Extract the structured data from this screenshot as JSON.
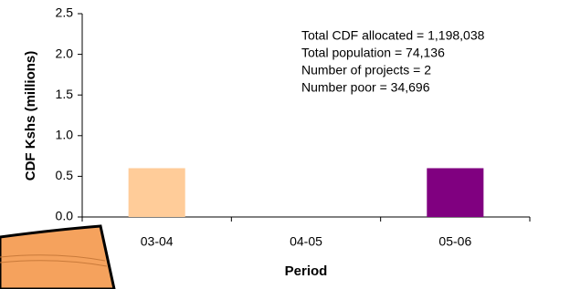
{
  "chart_data": {
    "type": "bar",
    "categories": [
      "03-04",
      "04-05",
      "05-06"
    ],
    "values": [
      0.6,
      0,
      0.6
    ],
    "colors": [
      "#ffcc99",
      "#ffcc99",
      "#800080"
    ],
    "ylim": [
      0,
      2.5
    ],
    "yticks": [
      {
        "value": 0,
        "label": "0.0"
      },
      0.5,
      {
        "value": 1,
        "label": "1.0"
      },
      1.5,
      {
        "value": 2,
        "label": "2.0"
      },
      2.5
    ],
    "y_label": "CDF Kshs (millions)",
    "x_label": "Period",
    "annotations": [
      "Total CDF allocated =  1,198,038",
      "Total population = 74,136",
      "Number of projects = 2",
      "Number poor = 34,696"
    ],
    "grid": false
  }
}
